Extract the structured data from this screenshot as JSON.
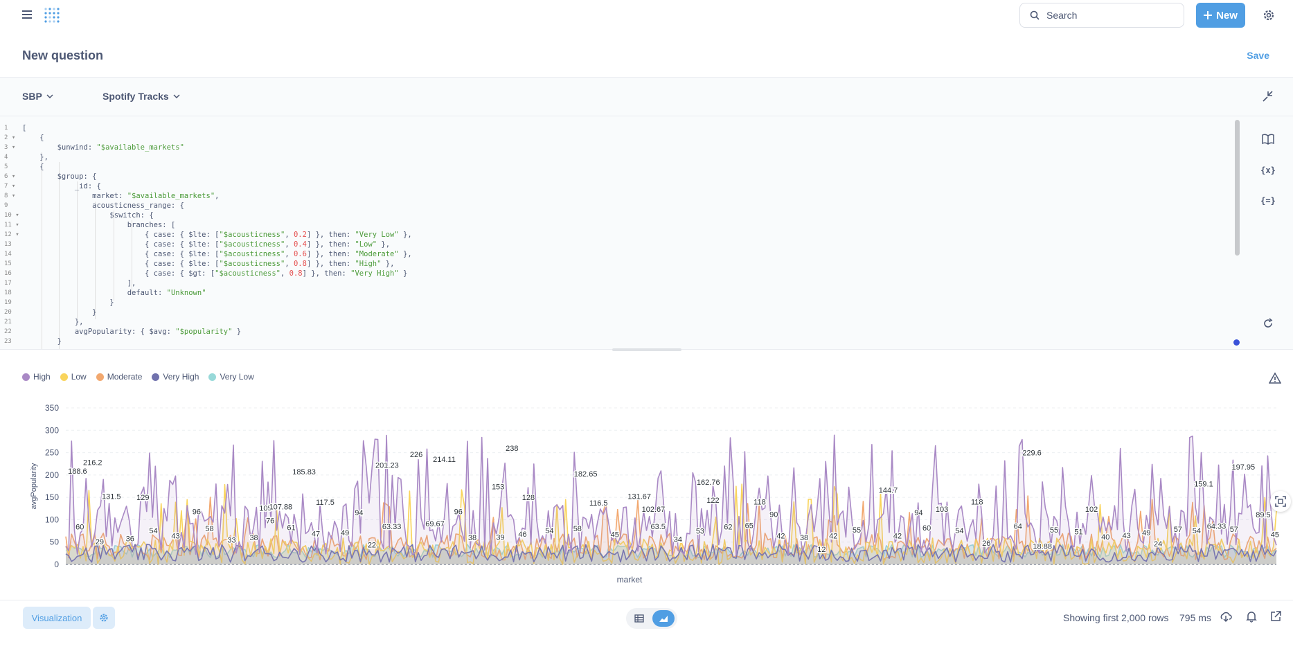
{
  "topbar": {
    "search_placeholder": "Search",
    "new_label": "New"
  },
  "header": {
    "title": "New question",
    "save_label": "Save"
  },
  "query": {
    "database": "SBP",
    "collection": "Spotify Tracks",
    "line_numbers": [
      "1",
      "2",
      "3",
      "4",
      "5",
      "6",
      "7",
      "8",
      "9",
      "10",
      "11",
      "12",
      "13",
      "14",
      "15",
      "16",
      "17",
      "18",
      "19",
      "20",
      "21",
      "22",
      "23"
    ],
    "lines": [
      "[",
      "    {",
      "        $unwind: \"$available_markets\"",
      "    },",
      "    {",
      "        $group: {",
      "            _id: {",
      "                market: \"$available_markets\",",
      "                acousticness_range: {",
      "                    $switch: {",
      "                        branches: [",
      "                            { case: { $lte: [\"$acousticness\", 0.2] }, then: \"Very Low\" },",
      "                            { case: { $lte: [\"$acousticness\", 0.4] }, then: \"Low\" },",
      "                            { case: { $lte: [\"$acousticness\", 0.6] }, then: \"Moderate\" },",
      "                            { case: { $lte: [\"$acousticness\", 0.8] }, then: \"High\" },",
      "                            { case: { $gt: [\"$acousticness\", 0.8] }, then: \"Very High\" }",
      "                        ],",
      "                        default: \"Unknown\"",
      "                    }",
      "                }",
      "            },",
      "            avgPopularity: { $avg: \"$popularity\" }",
      "        }"
    ]
  },
  "chart_data": {
    "type": "area",
    "xlabel": "market",
    "ylabel": "avgPopularity",
    "ylim": [
      0,
      350
    ],
    "yticks": [
      0,
      50,
      100,
      150,
      200,
      250,
      300,
      350
    ],
    "grid": true,
    "legend_position": "top-left",
    "series": [
      {
        "name": "High",
        "color": "#a989c5"
      },
      {
        "name": "Low",
        "color": "#f9d45c"
      },
      {
        "name": "Moderate",
        "color": "#f2a86f"
      },
      {
        "name": "Very High",
        "color": "#7172ad"
      },
      {
        "name": "Very Low",
        "color": "#98d9d9"
      }
    ],
    "annotations": [
      {
        "label": "188.6",
        "i": 0.01,
        "v": 203
      },
      {
        "label": "216.2",
        "i": 0.023,
        "v": 222
      },
      {
        "label": "60",
        "i": 0.012,
        "v": 78
      },
      {
        "label": "131.5",
        "i": 0.039,
        "v": 146
      },
      {
        "label": "29",
        "i": 0.029,
        "v": 45
      },
      {
        "label": "129",
        "i": 0.066,
        "v": 144
      },
      {
        "label": "36",
        "i": 0.055,
        "v": 52
      },
      {
        "label": "54",
        "i": 0.075,
        "v": 70
      },
      {
        "label": "43",
        "i": 0.094,
        "v": 58
      },
      {
        "label": "96",
        "i": 0.112,
        "v": 112
      },
      {
        "label": "58",
        "i": 0.123,
        "v": 74
      },
      {
        "label": "33",
        "i": 0.142,
        "v": 49
      },
      {
        "label": "185.83",
        "i": 0.204,
        "v": 201
      },
      {
        "label": "105",
        "i": 0.171,
        "v": 120
      },
      {
        "label": "107.88",
        "i": 0.184,
        "v": 123
      },
      {
        "label": "76",
        "i": 0.175,
        "v": 92
      },
      {
        "label": "38",
        "i": 0.161,
        "v": 54
      },
      {
        "label": "61",
        "i": 0.193,
        "v": 77
      },
      {
        "label": "47",
        "i": 0.214,
        "v": 63
      },
      {
        "label": "117.5",
        "i": 0.222,
        "v": 133
      },
      {
        "label": "49",
        "i": 0.239,
        "v": 65
      },
      {
        "label": "94",
        "i": 0.251,
        "v": 110
      },
      {
        "label": "201.23",
        "i": 0.275,
        "v": 216
      },
      {
        "label": "226",
        "i": 0.3,
        "v": 240
      },
      {
        "label": "214.11",
        "i": 0.324,
        "v": 229
      },
      {
        "label": "63.33",
        "i": 0.279,
        "v": 79
      },
      {
        "label": "22",
        "i": 0.262,
        "v": 38
      },
      {
        "label": "69.67",
        "i": 0.316,
        "v": 85
      },
      {
        "label": "96",
        "i": 0.336,
        "v": 112
      },
      {
        "label": "38",
        "i": 0.348,
        "v": 54
      },
      {
        "label": "39",
        "i": 0.372,
        "v": 55
      },
      {
        "label": "238",
        "i": 0.382,
        "v": 254
      },
      {
        "label": "153",
        "i": 0.37,
        "v": 168
      },
      {
        "label": "128",
        "i": 0.396,
        "v": 144
      },
      {
        "label": "46",
        "i": 0.391,
        "v": 62
      },
      {
        "label": "54",
        "i": 0.414,
        "v": 70
      },
      {
        "label": "182.65",
        "i": 0.445,
        "v": 197
      },
      {
        "label": "58",
        "i": 0.438,
        "v": 74
      },
      {
        "label": "116.5",
        "i": 0.456,
        "v": 132
      },
      {
        "label": "45",
        "i": 0.47,
        "v": 61
      },
      {
        "label": "131.67",
        "i": 0.491,
        "v": 146
      },
      {
        "label": "102.67",
        "i": 0.503,
        "v": 118
      },
      {
        "label": "63.5",
        "i": 0.507,
        "v": 79
      },
      {
        "label": "34",
        "i": 0.524,
        "v": 50
      },
      {
        "label": "162.76",
        "i": 0.55,
        "v": 178
      },
      {
        "label": "53",
        "i": 0.543,
        "v": 69
      },
      {
        "label": "122",
        "i": 0.554,
        "v": 138
      },
      {
        "label": "62",
        "i": 0.567,
        "v": 78
      },
      {
        "label": "118",
        "i": 0.594,
        "v": 134
      },
      {
        "label": "65",
        "i": 0.585,
        "v": 81
      },
      {
        "label": "90",
        "i": 0.606,
        "v": 106
      },
      {
        "label": "42",
        "i": 0.612,
        "v": 58
      },
      {
        "label": "38",
        "i": 0.632,
        "v": 54
      },
      {
        "label": "12",
        "i": 0.647,
        "v": 28
      },
      {
        "label": "42",
        "i": 0.657,
        "v": 58
      },
      {
        "label": "55",
        "i": 0.677,
        "v": 71
      },
      {
        "label": "144.7",
        "i": 0.704,
        "v": 160
      },
      {
        "label": "42",
        "i": 0.712,
        "v": 58
      },
      {
        "label": "94",
        "i": 0.73,
        "v": 110
      },
      {
        "label": "60",
        "i": 0.737,
        "v": 76
      },
      {
        "label": "103",
        "i": 0.75,
        "v": 118
      },
      {
        "label": "54",
        "i": 0.765,
        "v": 70
      },
      {
        "label": "118",
        "i": 0.78,
        "v": 134
      },
      {
        "label": "26",
        "i": 0.788,
        "v": 42
      },
      {
        "label": "229.6",
        "i": 0.827,
        "v": 244
      },
      {
        "label": "64",
        "i": 0.815,
        "v": 80
      },
      {
        "label": "18.88",
        "i": 0.836,
        "v": 35
      },
      {
        "label": "55",
        "i": 0.846,
        "v": 71
      },
      {
        "label": "51",
        "i": 0.867,
        "v": 67
      },
      {
        "label": "102",
        "i": 0.878,
        "v": 118
      },
      {
        "label": "40",
        "i": 0.89,
        "v": 56
      },
      {
        "label": "43",
        "i": 0.908,
        "v": 59
      },
      {
        "label": "49",
        "i": 0.925,
        "v": 65
      },
      {
        "label": "24",
        "i": 0.935,
        "v": 40
      },
      {
        "label": "57",
        "i": 0.952,
        "v": 73
      },
      {
        "label": "54",
        "i": 0.968,
        "v": 70
      },
      {
        "label": "159.1",
        "i": 0.974,
        "v": 174
      },
      {
        "label": "64.33",
        "i": 0.985,
        "v": 80
      },
      {
        "label": "57",
        "i": 1.0,
        "v": 73
      },
      {
        "label": "197.95",
        "i": 1.008,
        "v": 212
      },
      {
        "label": "89.5",
        "i": 1.025,
        "v": 105
      },
      {
        "label": "45",
        "i": 1.035,
        "v": 61
      }
    ]
  },
  "footer": {
    "visualization_label": "Visualization",
    "rows_label": "Showing first 2,000 rows",
    "time_label": "795 ms"
  }
}
